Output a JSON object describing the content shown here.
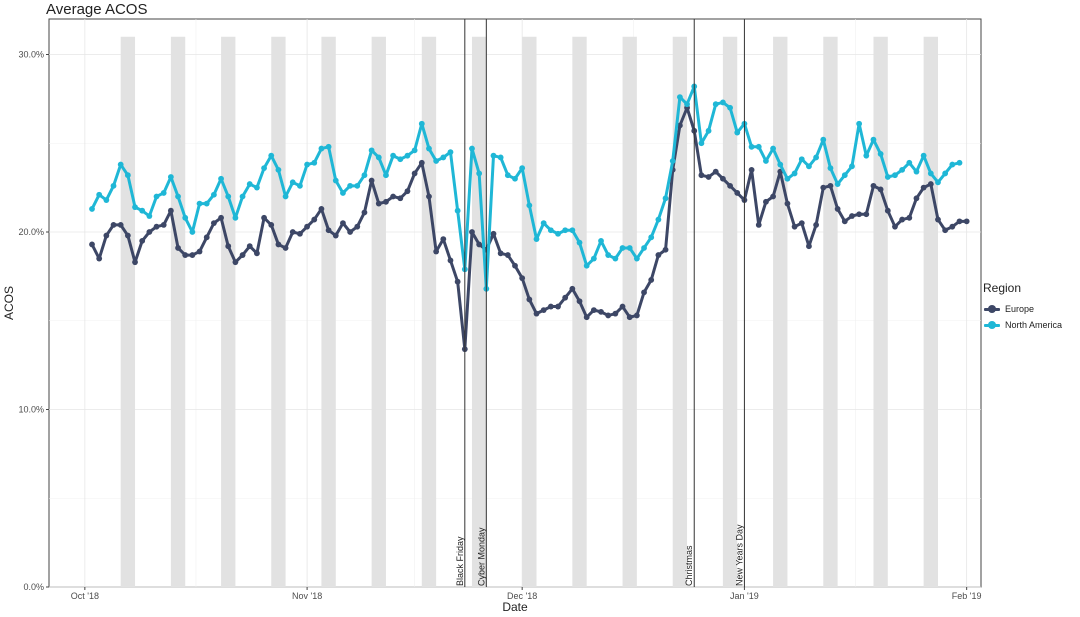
{
  "chart_data": {
    "type": "line",
    "title": "Average ACOS",
    "xlabel": "Date",
    "ylabel": "ACOS",
    "x_start": "2018-10-02",
    "x_end": "2019-01-29",
    "xlim": [
      "2018-09-26",
      "2019-02-03"
    ],
    "ylim": [
      0,
      0.32
    ],
    "y_ticks": [
      0,
      0.1,
      0.2,
      0.3
    ],
    "y_tick_labels": [
      "0.0%",
      "10.0%",
      "20.0%",
      "30.0%"
    ],
    "x_ticks": [
      "2018-10-01",
      "2018-11-01",
      "2018-12-01",
      "2019-01-01",
      "2019-02-01"
    ],
    "x_tick_labels": [
      "Oct '18",
      "Nov '18",
      "Dec '18",
      "Jan '19",
      "Feb '19"
    ],
    "weekend_shading": true,
    "weekend_shade_top": 0.31,
    "grid": true,
    "legend_position": "right",
    "legend_title": "Region",
    "events": [
      {
        "date": "2018-11-23",
        "label": "Black Friday"
      },
      {
        "date": "2018-11-26",
        "label": "Cyber Monday"
      },
      {
        "date": "2018-12-25",
        "label": "Christmas"
      },
      {
        "date": "2019-01-01",
        "label": "New Years Day"
      }
    ],
    "series": [
      {
        "name": "Europe",
        "color": "#3d4766",
        "values": [
          0.193,
          0.185,
          0.198,
          0.204,
          0.204,
          0.198,
          0.183,
          0.195,
          0.2,
          0.203,
          0.204,
          0.212,
          0.191,
          0.187,
          0.187,
          0.189,
          0.197,
          0.205,
          0.208,
          0.192,
          0.183,
          0.187,
          0.192,
          0.188,
          0.208,
          0.204,
          0.193,
          0.191,
          0.2,
          0.199,
          0.203,
          0.207,
          0.213,
          0.201,
          0.198,
          0.205,
          0.2,
          0.203,
          0.211,
          0.229,
          0.216,
          0.217,
          0.22,
          0.219,
          0.223,
          0.233,
          0.239,
          0.22,
          0.189,
          0.196,
          0.184,
          0.172,
          0.134,
          0.2,
          0.193,
          0.19,
          0.199,
          0.188,
          0.187,
          0.181,
          0.174,
          0.162,
          0.154,
          0.156,
          0.158,
          0.158,
          0.163,
          0.168,
          0.161,
          0.152,
          0.156,
          0.155,
          0.153,
          0.154,
          0.158,
          0.152,
          0.153,
          0.166,
          0.173,
          0.187,
          0.19,
          0.235,
          0.26,
          0.27,
          0.257,
          0.232,
          0.231,
          0.234,
          0.23,
          0.226,
          0.222,
          0.218,
          0.235,
          0.204,
          0.217,
          0.22,
          0.234,
          0.216,
          0.203,
          0.205,
          0.192,
          0.204,
          0.225,
          0.226,
          0.213,
          0.206,
          0.209,
          0.21,
          0.21,
          0.226,
          0.224,
          0.212,
          0.203,
          0.207,
          0.208,
          0.219,
          0.225,
          0.227,
          0.207,
          0.201,
          0.203,
          0.206,
          0.206
        ]
      },
      {
        "name": "North America",
        "color": "#1fb7d6",
        "values": [
          0.213,
          0.221,
          0.218,
          0.226,
          0.238,
          0.232,
          0.214,
          0.212,
          0.209,
          0.22,
          0.222,
          0.231,
          0.22,
          0.208,
          0.2,
          0.216,
          0.216,
          0.221,
          0.23,
          0.22,
          0.208,
          0.22,
          0.227,
          0.225,
          0.236,
          0.243,
          0.235,
          0.22,
          0.228,
          0.226,
          0.238,
          0.239,
          0.247,
          0.248,
          0.229,
          0.222,
          0.226,
          0.226,
          0.232,
          0.246,
          0.242,
          0.232,
          0.243,
          0.241,
          0.243,
          0.246,
          0.261,
          0.247,
          0.24,
          0.242,
          0.245,
          0.212,
          0.179,
          0.247,
          0.233,
          0.168,
          0.243,
          0.242,
          0.232,
          0.23,
          0.236,
          0.215,
          0.196,
          0.205,
          0.201,
          0.199,
          0.201,
          0.201,
          0.194,
          0.181,
          0.185,
          0.195,
          0.187,
          0.185,
          0.191,
          0.191,
          0.185,
          0.191,
          0.197,
          0.207,
          0.219,
          0.24,
          0.276,
          0.272,
          0.282,
          0.25,
          0.257,
          0.272,
          0.273,
          0.27,
          0.256,
          0.261,
          0.248,
          0.248,
          0.24,
          0.247,
          0.238,
          0.23,
          0.233,
          0.241,
          0.237,
          0.242,
          0.252,
          0.236,
          0.227,
          0.232,
          0.237,
          0.261,
          0.243,
          0.252,
          0.244,
          0.231,
          0.232,
          0.235,
          0.239,
          0.234,
          0.243,
          0.233,
          0.228,
          0.233,
          0.238,
          0.239
        ]
      }
    ]
  }
}
